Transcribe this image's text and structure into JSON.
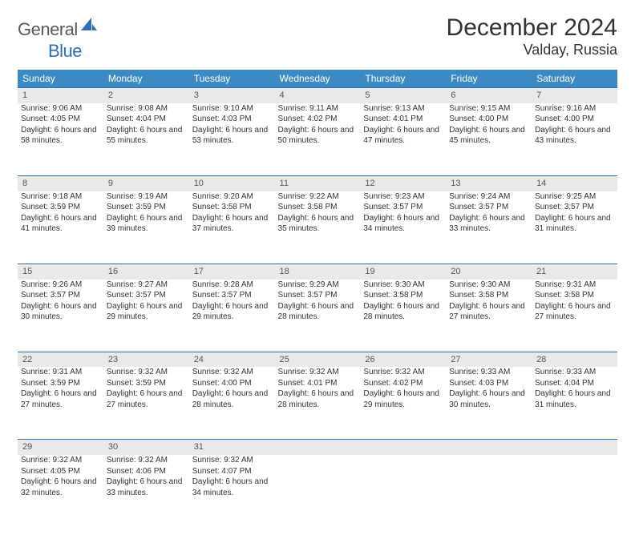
{
  "logo": {
    "general": "General",
    "blue": "Blue"
  },
  "title": "December 2024",
  "location": "Valday, Russia",
  "colors": {
    "header_bg": "#3b8ac4",
    "daynum_bg": "#e9e9e9",
    "border": "#2f6fb3",
    "text": "#333333",
    "logo_gray": "#555a5f",
    "logo_blue": "#2f6fb3"
  },
  "weekdays": [
    "Sunday",
    "Monday",
    "Tuesday",
    "Wednesday",
    "Thursday",
    "Friday",
    "Saturday"
  ],
  "weeks": [
    [
      {
        "d": "1",
        "sr": "9:06 AM",
        "ss": "4:05 PM",
        "dl": "6 hours and 58 minutes."
      },
      {
        "d": "2",
        "sr": "9:08 AM",
        "ss": "4:04 PM",
        "dl": "6 hours and 55 minutes."
      },
      {
        "d": "3",
        "sr": "9:10 AM",
        "ss": "4:03 PM",
        "dl": "6 hours and 53 minutes."
      },
      {
        "d": "4",
        "sr": "9:11 AM",
        "ss": "4:02 PM",
        "dl": "6 hours and 50 minutes."
      },
      {
        "d": "5",
        "sr": "9:13 AM",
        "ss": "4:01 PM",
        "dl": "6 hours and 47 minutes."
      },
      {
        "d": "6",
        "sr": "9:15 AM",
        "ss": "4:00 PM",
        "dl": "6 hours and 45 minutes."
      },
      {
        "d": "7",
        "sr": "9:16 AM",
        "ss": "4:00 PM",
        "dl": "6 hours and 43 minutes."
      }
    ],
    [
      {
        "d": "8",
        "sr": "9:18 AM",
        "ss": "3:59 PM",
        "dl": "6 hours and 41 minutes."
      },
      {
        "d": "9",
        "sr": "9:19 AM",
        "ss": "3:59 PM",
        "dl": "6 hours and 39 minutes."
      },
      {
        "d": "10",
        "sr": "9:20 AM",
        "ss": "3:58 PM",
        "dl": "6 hours and 37 minutes."
      },
      {
        "d": "11",
        "sr": "9:22 AM",
        "ss": "3:58 PM",
        "dl": "6 hours and 35 minutes."
      },
      {
        "d": "12",
        "sr": "9:23 AM",
        "ss": "3:57 PM",
        "dl": "6 hours and 34 minutes."
      },
      {
        "d": "13",
        "sr": "9:24 AM",
        "ss": "3:57 PM",
        "dl": "6 hours and 33 minutes."
      },
      {
        "d": "14",
        "sr": "9:25 AM",
        "ss": "3:57 PM",
        "dl": "6 hours and 31 minutes."
      }
    ],
    [
      {
        "d": "15",
        "sr": "9:26 AM",
        "ss": "3:57 PM",
        "dl": "6 hours and 30 minutes."
      },
      {
        "d": "16",
        "sr": "9:27 AM",
        "ss": "3:57 PM",
        "dl": "6 hours and 29 minutes."
      },
      {
        "d": "17",
        "sr": "9:28 AM",
        "ss": "3:57 PM",
        "dl": "6 hours and 29 minutes."
      },
      {
        "d": "18",
        "sr": "9:29 AM",
        "ss": "3:57 PM",
        "dl": "6 hours and 28 minutes."
      },
      {
        "d": "19",
        "sr": "9:30 AM",
        "ss": "3:58 PM",
        "dl": "6 hours and 28 minutes."
      },
      {
        "d": "20",
        "sr": "9:30 AM",
        "ss": "3:58 PM",
        "dl": "6 hours and 27 minutes."
      },
      {
        "d": "21",
        "sr": "9:31 AM",
        "ss": "3:58 PM",
        "dl": "6 hours and 27 minutes."
      }
    ],
    [
      {
        "d": "22",
        "sr": "9:31 AM",
        "ss": "3:59 PM",
        "dl": "6 hours and 27 minutes."
      },
      {
        "d": "23",
        "sr": "9:32 AM",
        "ss": "3:59 PM",
        "dl": "6 hours and 27 minutes."
      },
      {
        "d": "24",
        "sr": "9:32 AM",
        "ss": "4:00 PM",
        "dl": "6 hours and 28 minutes."
      },
      {
        "d": "25",
        "sr": "9:32 AM",
        "ss": "4:01 PM",
        "dl": "6 hours and 28 minutes."
      },
      {
        "d": "26",
        "sr": "9:32 AM",
        "ss": "4:02 PM",
        "dl": "6 hours and 29 minutes."
      },
      {
        "d": "27",
        "sr": "9:33 AM",
        "ss": "4:03 PM",
        "dl": "6 hours and 30 minutes."
      },
      {
        "d": "28",
        "sr": "9:33 AM",
        "ss": "4:04 PM",
        "dl": "6 hours and 31 minutes."
      }
    ],
    [
      {
        "d": "29",
        "sr": "9:32 AM",
        "ss": "4:05 PM",
        "dl": "6 hours and 32 minutes."
      },
      {
        "d": "30",
        "sr": "9:32 AM",
        "ss": "4:06 PM",
        "dl": "6 hours and 33 minutes."
      },
      {
        "d": "31",
        "sr": "9:32 AM",
        "ss": "4:07 PM",
        "dl": "6 hours and 34 minutes."
      },
      null,
      null,
      null,
      null
    ]
  ],
  "labels": {
    "sunrise": "Sunrise:",
    "sunset": "Sunset:",
    "daylight": "Daylight:"
  }
}
